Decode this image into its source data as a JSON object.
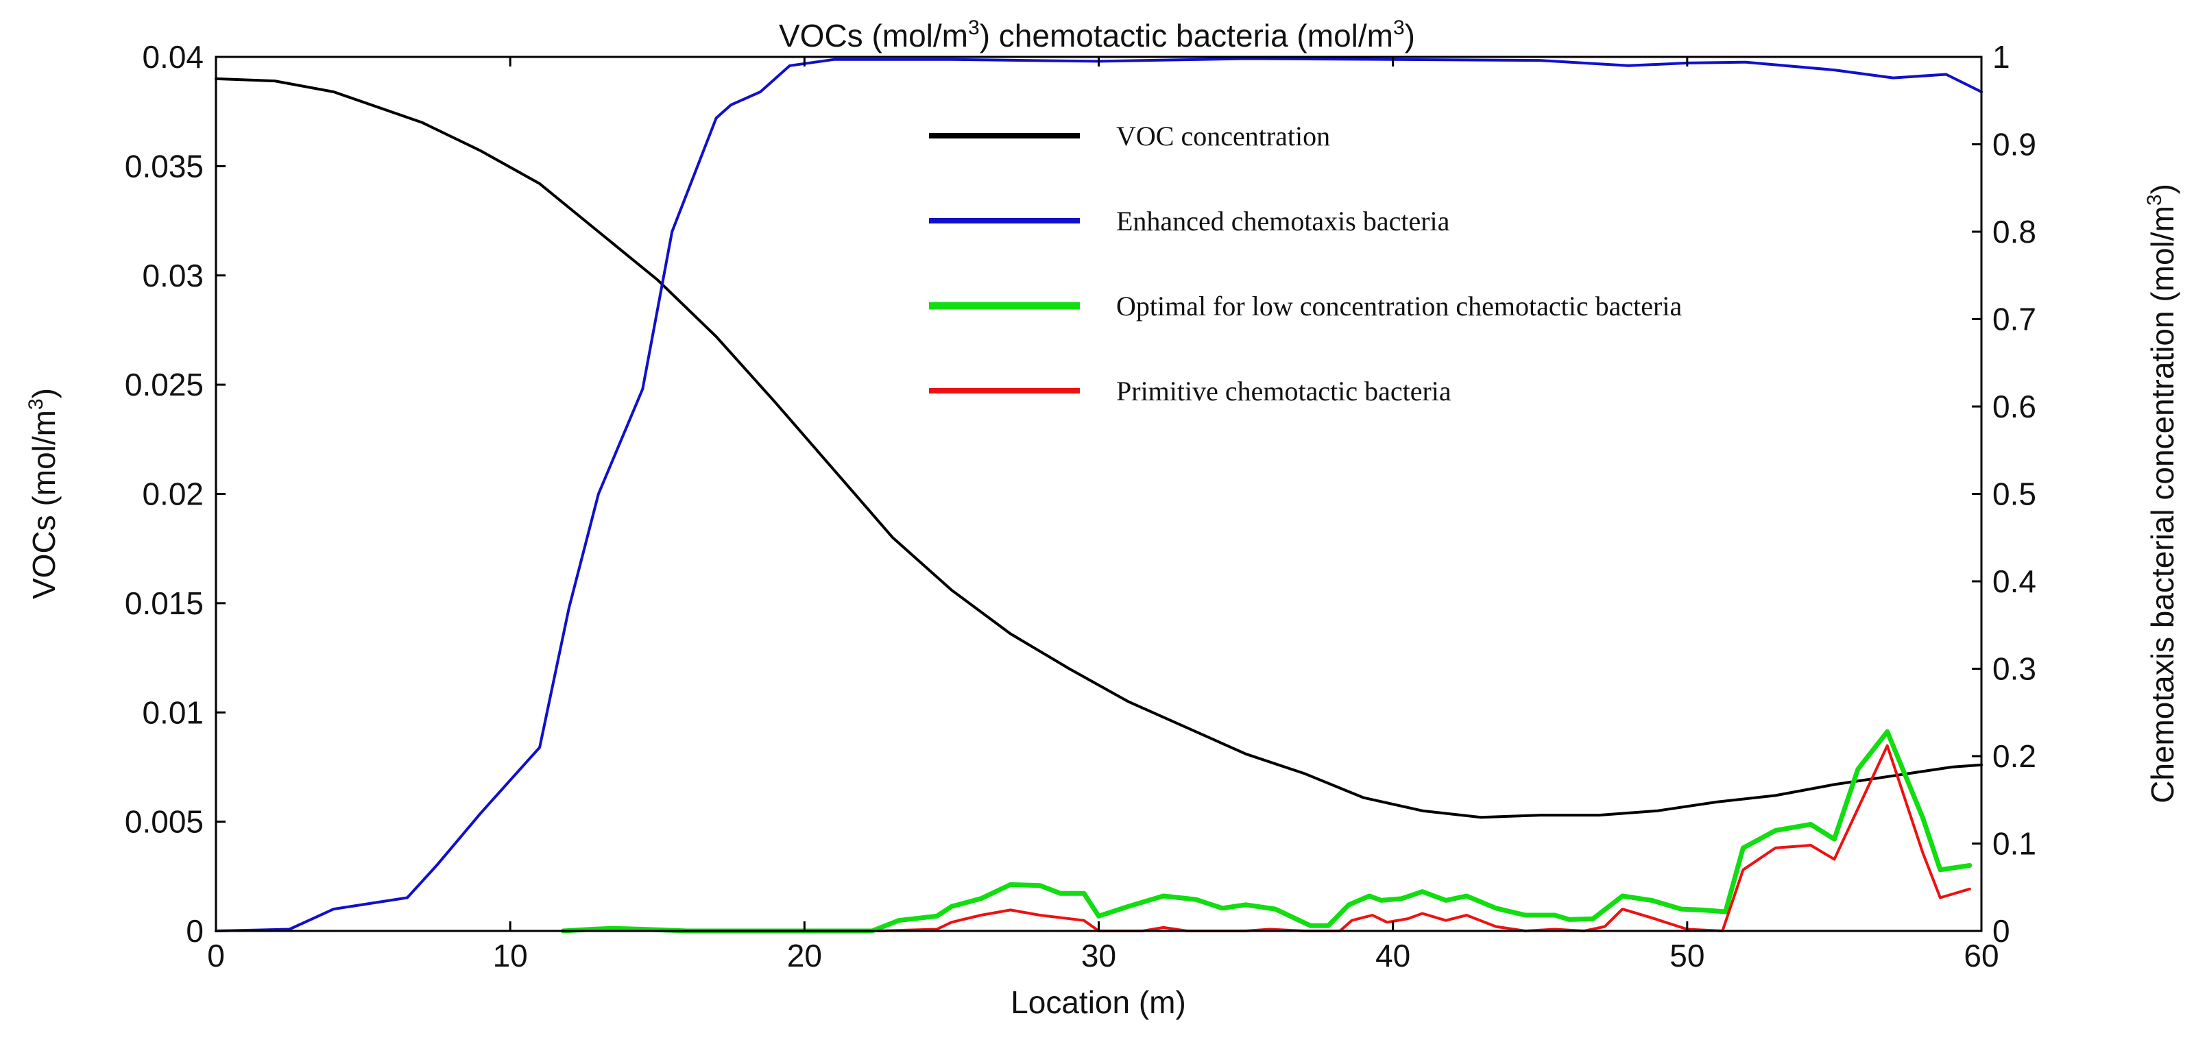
{
  "chart_data": {
    "type": "line",
    "title": {
      "prefix": "VOCs (mol/m",
      "sup1": "3",
      "middle": ") chemotactic bacteria (mol/m",
      "sup2": "3",
      "suffix": ")"
    },
    "xlabel": "Location (m)",
    "ylabel_left": {
      "text": "VOCs (mol/m",
      "sup": "3",
      "suffix": ")"
    },
    "ylabel_right": {
      "text": "Chemotaxis bacterial concentration (mol/m",
      "sup": "3",
      "suffix": ")"
    },
    "xlim": [
      0,
      60
    ],
    "ylim_left": [
      0,
      0.04
    ],
    "ylim_right": [
      0,
      1
    ],
    "x_ticks": [
      "0",
      "10",
      "20",
      "30",
      "40",
      "50",
      "60"
    ],
    "y_left_ticks": [
      "0",
      "0.005",
      "0.01",
      "0.015",
      "0.02",
      "0.025",
      "0.03",
      "0.035",
      "0.04"
    ],
    "y_right_ticks": [
      "0",
      "0.1",
      "0.2",
      "0.3",
      "0.4",
      "0.5",
      "0.6",
      "0.7",
      "0.8",
      "0.9",
      "1"
    ],
    "grid": false,
    "legend_position": "top-center",
    "series": [
      {
        "name": "VOC concentration",
        "axis": "left",
        "color": "#000000",
        "points": [
          [
            0,
            0.039
          ],
          [
            2,
            0.0389
          ],
          [
            4,
            0.0384
          ],
          [
            7,
            0.037
          ],
          [
            9,
            0.0357
          ],
          [
            11,
            0.0342
          ],
          [
            13,
            0.032
          ],
          [
            15,
            0.0298
          ],
          [
            17,
            0.0272
          ],
          [
            19,
            0.0242
          ],
          [
            21,
            0.0211
          ],
          [
            23,
            0.018
          ],
          [
            25,
            0.0156
          ],
          [
            27,
            0.0136
          ],
          [
            29,
            0.012
          ],
          [
            31,
            0.0105
          ],
          [
            33,
            0.0093
          ],
          [
            35,
            0.0081
          ],
          [
            37,
            0.0072
          ],
          [
            39,
            0.0061
          ],
          [
            41,
            0.0055
          ],
          [
            43,
            0.0052
          ],
          [
            45,
            0.0053
          ],
          [
            47,
            0.0053
          ],
          [
            49,
            0.0055
          ],
          [
            51,
            0.0059
          ],
          [
            53,
            0.0062
          ],
          [
            55,
            0.0067
          ],
          [
            57,
            0.0071
          ],
          [
            59,
            0.0075
          ],
          [
            60,
            0.0076
          ]
        ]
      },
      {
        "name": "Enhanced chemotaxis bacteria",
        "axis": "right",
        "color": "#1010cc",
        "points": [
          [
            0,
            0
          ],
          [
            2.5,
            0.002
          ],
          [
            4,
            0.025
          ],
          [
            6.5,
            0.038
          ],
          [
            7.5,
            0.075
          ],
          [
            9,
            0.135
          ],
          [
            11,
            0.21
          ],
          [
            12,
            0.37
          ],
          [
            13,
            0.5
          ],
          [
            14.5,
            0.62
          ],
          [
            15.5,
            0.8
          ],
          [
            17,
            0.93
          ],
          [
            17.5,
            0.945
          ],
          [
            18.5,
            0.96
          ],
          [
            19.5,
            0.99
          ],
          [
            21,
            0.997
          ],
          [
            25,
            0.997
          ],
          [
            30,
            0.995
          ],
          [
            35,
            0.998
          ],
          [
            40,
            0.997
          ],
          [
            45,
            0.996
          ],
          [
            48,
            0.99
          ],
          [
            50,
            0.993
          ],
          [
            52,
            0.994
          ],
          [
            55,
            0.985
          ],
          [
            57,
            0.976
          ],
          [
            58.8,
            0.98
          ],
          [
            60,
            0.96
          ]
        ]
      },
      {
        "name": "Optimal for low concentration chemotactic bacteria",
        "axis": "right",
        "color": "#11dd11",
        "points": [
          [
            11.8,
            0
          ],
          [
            12.8,
            0.002
          ],
          [
            13.5,
            0.003
          ],
          [
            14.5,
            0.002
          ],
          [
            16,
            0
          ],
          [
            22.3,
            0
          ],
          [
            23.2,
            0.012
          ],
          [
            24.5,
            0.017
          ],
          [
            25,
            0.028
          ],
          [
            26,
            0.037
          ],
          [
            27,
            0.053
          ],
          [
            28,
            0.052
          ],
          [
            28.7,
            0.043
          ],
          [
            29.5,
            0.043
          ],
          [
            30,
            0.017
          ],
          [
            31,
            0.028
          ],
          [
            32.2,
            0.04
          ],
          [
            33.3,
            0.036
          ],
          [
            34.2,
            0.026
          ],
          [
            35,
            0.03
          ],
          [
            36,
            0.025
          ],
          [
            37.2,
            0.006
          ],
          [
            37.8,
            0.006
          ],
          [
            38.5,
            0.03
          ],
          [
            39.2,
            0.04
          ],
          [
            39.6,
            0.035
          ],
          [
            40.3,
            0.037
          ],
          [
            41,
            0.045
          ],
          [
            41.8,
            0.035
          ],
          [
            42.5,
            0.04
          ],
          [
            43.5,
            0.026
          ],
          [
            44.5,
            0.018
          ],
          [
            45.5,
            0.018
          ],
          [
            46,
            0.013
          ],
          [
            46.8,
            0.014
          ],
          [
            47.8,
            0.04
          ],
          [
            48.8,
            0.035
          ],
          [
            49.8,
            0.025
          ],
          [
            50.5,
            0.024
          ],
          [
            51.3,
            0.022
          ],
          [
            51.9,
            0.095
          ],
          [
            53,
            0.115
          ],
          [
            54.2,
            0.122
          ],
          [
            55,
            0.105
          ],
          [
            55.8,
            0.185
          ],
          [
            56.8,
            0.228
          ],
          [
            58,
            0.13
          ],
          [
            58.6,
            0.07
          ],
          [
            59.6,
            0.075
          ]
        ]
      },
      {
        "name": "Primitive chemotactic bacteria",
        "axis": "right",
        "color": "#ee1111",
        "points": [
          [
            22.5,
            0
          ],
          [
            24.5,
            0.002
          ],
          [
            25,
            0.01
          ],
          [
            26,
            0.018
          ],
          [
            27,
            0.024
          ],
          [
            28,
            0.018
          ],
          [
            29.5,
            0.012
          ],
          [
            30,
            0
          ],
          [
            31.5,
            0
          ],
          [
            32.2,
            0.004
          ],
          [
            33,
            0
          ],
          [
            35,
            0
          ],
          [
            35.8,
            0.002
          ],
          [
            37,
            0
          ],
          [
            38.2,
            0
          ],
          [
            38.6,
            0.012
          ],
          [
            39.3,
            0.018
          ],
          [
            39.8,
            0.01
          ],
          [
            40.5,
            0.014
          ],
          [
            41,
            0.02
          ],
          [
            41.8,
            0.012
          ],
          [
            42.5,
            0.018
          ],
          [
            43.5,
            0.005
          ],
          [
            44.5,
            0
          ],
          [
            45.5,
            0.002
          ],
          [
            46.5,
            0
          ],
          [
            47.2,
            0.005
          ],
          [
            47.8,
            0.025
          ],
          [
            48.8,
            0.015
          ],
          [
            50,
            0.002
          ],
          [
            51.2,
            0
          ],
          [
            51.9,
            0.07
          ],
          [
            53,
            0.095
          ],
          [
            54.2,
            0.098
          ],
          [
            55,
            0.082
          ],
          [
            56.8,
            0.212
          ],
          [
            58,
            0.09
          ],
          [
            58.6,
            0.038
          ],
          [
            59.6,
            0.048
          ]
        ]
      }
    ]
  }
}
